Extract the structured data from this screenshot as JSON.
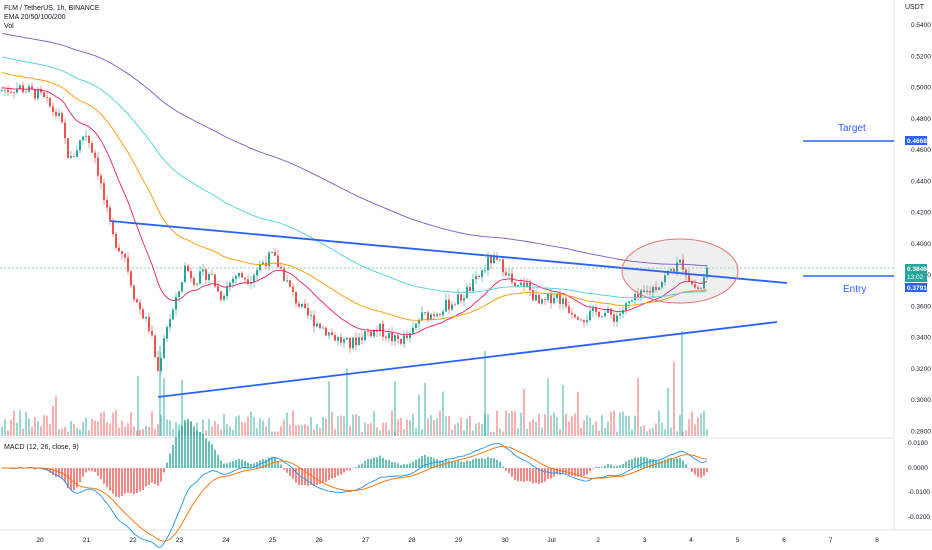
{
  "header": {
    "symbol": "FLM / TetherUS, 1h, BINANCE",
    "ema": "EMA 20/50/100/200",
    "vol": "Vol"
  },
  "axis_unit": "USDT",
  "macd_label": "MACD (12, 26, close, 9)",
  "annotations": {
    "target": "Target",
    "entry": "Entry"
  },
  "price_tags": {
    "target": "0.4668",
    "current": "0.3846",
    "countdown": "13:02",
    "ema": "0.3791"
  },
  "colors": {
    "accent": "#2962ff",
    "up": "#26a69a",
    "down": "#ef5350",
    "ema20": "#e91e63",
    "ema50": "#ff9800",
    "ema100": "#4dd0e1",
    "ema200": "#7e57c2",
    "macd": "#2196f3",
    "signal": "#ff6d00"
  },
  "chart_data": {
    "type": "candlestick",
    "price_axis_ticks": [
      "0.5400",
      "0.5200",
      "0.5000",
      "0.4800",
      "0.4600",
      "0.4400",
      "0.4200",
      "0.4000",
      "0.3800",
      "0.3600",
      "0.3400",
      "0.3200",
      "0.3000",
      "0.2800"
    ],
    "macd_axis_ticks": [
      "0.0100",
      "0.0000",
      "-0.0100",
      "-0.0200"
    ],
    "date_ticks": [
      "20",
      "21",
      "22",
      "23",
      "24",
      "25",
      "26",
      "27",
      "28",
      "29",
      "30",
      "Jul",
      "2",
      "3",
      "4",
      "5",
      "6",
      "7",
      "8"
    ],
    "price_range": [
      0.278,
      0.545
    ],
    "macd_range": [
      -0.023,
      0.011
    ],
    "trendlines": [
      {
        "name": "upper",
        "from": [
          "Jun 21",
          0.4145
        ],
        "to": [
          "Jul 5",
          0.3772
        ]
      },
      {
        "name": "lower",
        "from": [
          "Jun 22",
          0.303
        ],
        "to": [
          "Jul 5",
          0.3485
        ]
      }
    ],
    "levels": {
      "target": 0.4668,
      "entry": 0.38
    },
    "last_price": 0.3846
  }
}
